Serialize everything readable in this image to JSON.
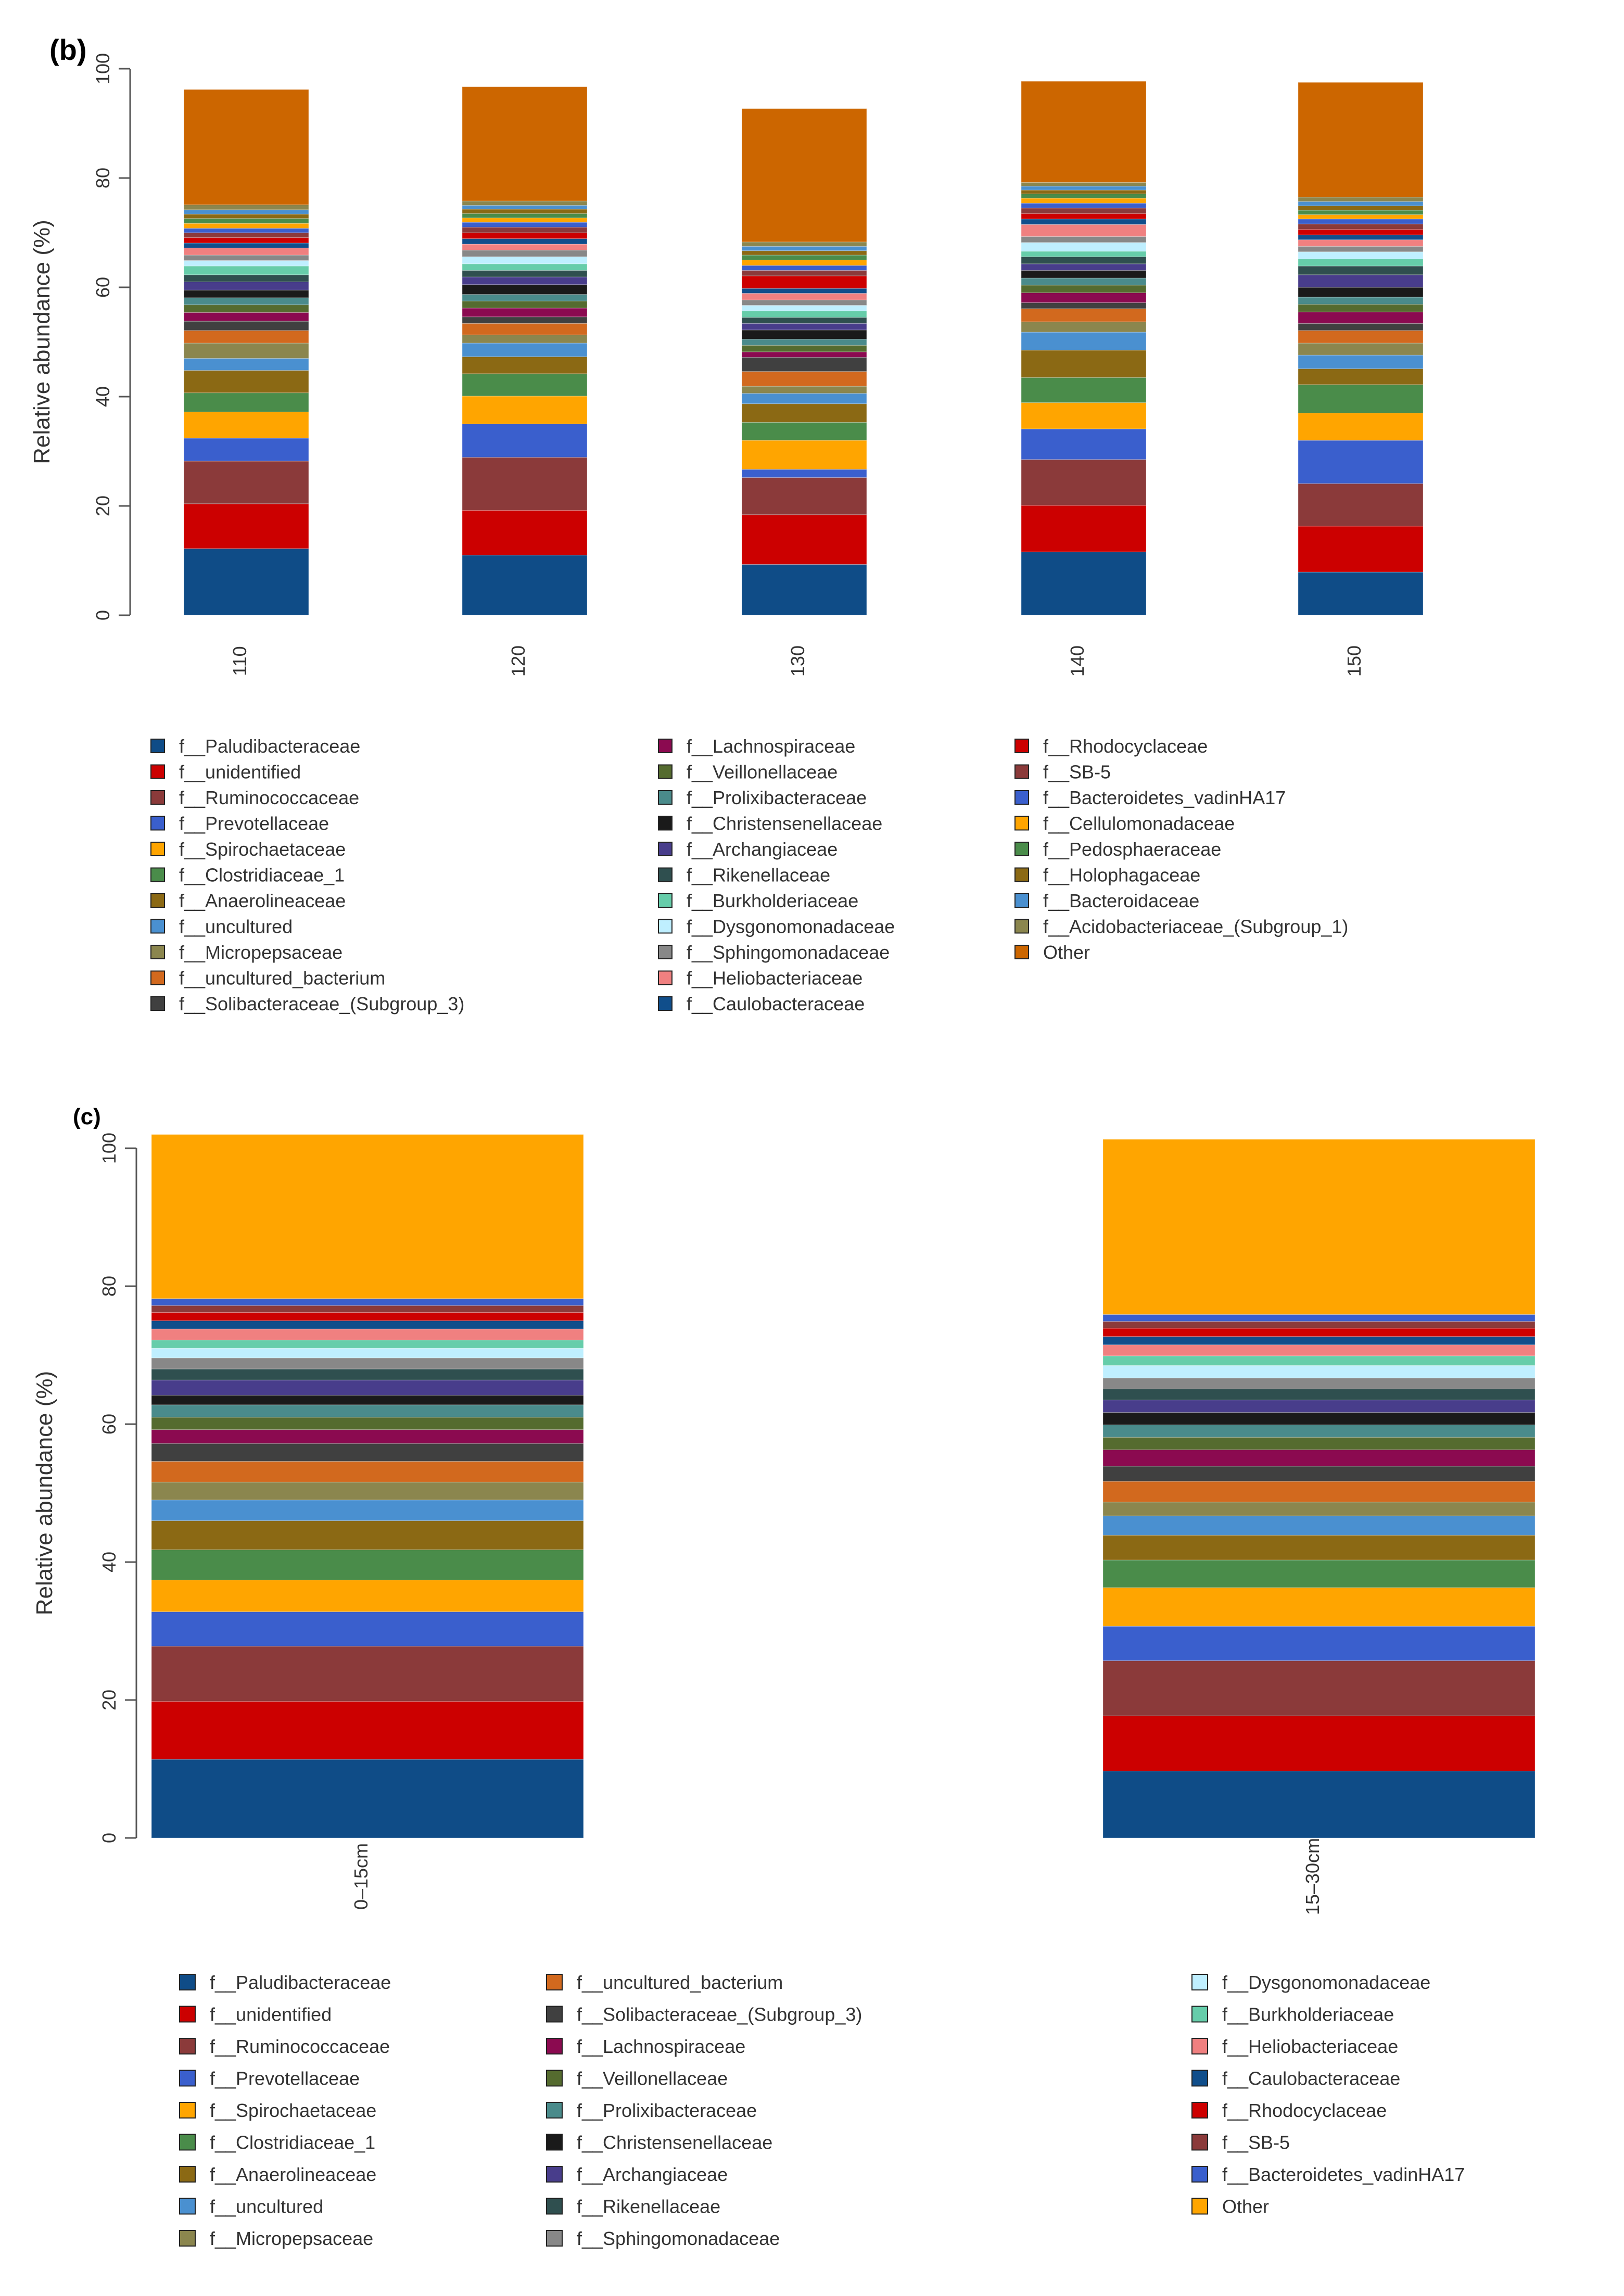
{
  "palette": {
    "Paludibacteraceae": "#0f4c87",
    "unidentified": "#cc0000",
    "Ruminococcaceae": "#8b3a3a",
    "Prevotellaceae": "#3a5fcd",
    "Spirochaetaceae": "#ffa500",
    "Clostridiaceae_1": "#4a8c4a",
    "Anaerolineaceae": "#8b6914",
    "uncultured": "#4a90d0",
    "Micropepsaceae": "#8b864e",
    "uncultured_bacterium": "#d2691e",
    "Solibacteraceae_(Subgroup_3)": "#404040",
    "Lachnospiraceae": "#8b0a50",
    "Veillonellaceae": "#556b2f",
    "Prolixibacteraceae": "#4a8b8b",
    "Christensenellaceae": "#1a1a1a",
    "Archangiaceae": "#483d8b",
    "Rikenellaceae": "#2f4f4f",
    "Burkholderiaceae": "#66cdaa",
    "Dysgonomonadaceae": "#bfefff",
    "Sphingomonadaceae": "#888888",
    "Heliobacteriaceae": "#f08080",
    "Caulobacteraceae": "#104e8b",
    "Rhodocyclaceae": "#cd0000",
    "SB-5": "#8b3a3a",
    "Bacteroidetes_vadinHA17": "#3a5fcd",
    "Cellulomonadaceae": "#ffa500",
    "Pedosphaeraceae": "#4a8c4a",
    "Holophagaceae": "#8b6914",
    "Bacteroidaceae": "#4a90d0",
    "Acidobacteriaceae_(Subgroup_1)": "#8b864e",
    "Other": "#cc6600",
    "Other_c": "#ffa500"
  },
  "chart_data": [
    {
      "panel": "(b)",
      "type": "stacked-bar",
      "ylabel": "Relative abundance (%)",
      "ylim": [
        0,
        100
      ],
      "yticks": [
        "0",
        "20",
        "40",
        "60",
        "80",
        "100"
      ],
      "categories": [
        "110",
        "120",
        "130",
        "140",
        "150"
      ],
      "series": [
        {
          "name": "Paludibacteraceae",
          "values": [
            12.2,
            11.0,
            9.3,
            11.6,
            7.9
          ]
        },
        {
          "name": "unidentified",
          "values": [
            8.2,
            8.2,
            9.1,
            8.5,
            8.4
          ]
        },
        {
          "name": "Ruminococcaceae",
          "values": [
            7.8,
            9.7,
            6.8,
            8.4,
            7.8
          ]
        },
        {
          "name": "Prevotellaceae",
          "values": [
            4.2,
            6.1,
            1.5,
            5.6,
            7.9
          ]
        },
        {
          "name": "Spirochaetaceae",
          "values": [
            4.8,
            5.1,
            5.3,
            4.8,
            5.0
          ]
        },
        {
          "name": "Clostridiaceae_1",
          "values": [
            3.5,
            4.1,
            3.3,
            4.6,
            5.2
          ]
        },
        {
          "name": "Anaerolineaceae",
          "values": [
            4.1,
            3.1,
            3.4,
            5.0,
            2.9
          ]
        },
        {
          "name": "uncultured",
          "values": [
            2.2,
            2.5,
            1.9,
            3.3,
            2.5
          ]
        },
        {
          "name": "Micropepsaceae",
          "values": [
            2.8,
            1.5,
            1.3,
            1.9,
            2.2
          ]
        },
        {
          "name": "uncultured_bacterium",
          "values": [
            2.3,
            2.1,
            2.7,
            2.4,
            2.3
          ]
        },
        {
          "name": "Solibacteraceae_(Subgroup_3)",
          "values": [
            1.7,
            1.2,
            2.6,
            1.1,
            1.3
          ]
        },
        {
          "name": "Lachnospiraceae",
          "values": [
            1.6,
            1.6,
            1.0,
            1.8,
            2.1
          ]
        },
        {
          "name": "Veillonellaceae",
          "values": [
            1.4,
            1.3,
            1.2,
            1.4,
            1.4
          ]
        },
        {
          "name": "Prolixibacteraceae",
          "values": [
            1.3,
            1.2,
            1.1,
            1.3,
            1.3
          ]
        },
        {
          "name": "Christensenellaceae",
          "values": [
            1.4,
            1.8,
            1.7,
            1.4,
            1.8
          ]
        },
        {
          "name": "Archangiaceae",
          "values": [
            1.5,
            1.4,
            1.2,
            1.2,
            2.3
          ]
        },
        {
          "name": "Rikenellaceae",
          "values": [
            1.3,
            1.2,
            1.1,
            1.3,
            1.6
          ]
        },
        {
          "name": "Burkholderiaceae",
          "values": [
            1.6,
            1.2,
            1.2,
            1.0,
            1.3
          ]
        },
        {
          "name": "Dysgonomonadaceae",
          "values": [
            1.0,
            1.3,
            1.0,
            1.6,
            1.3
          ]
        },
        {
          "name": "Sphingomonadaceae",
          "values": [
            1.0,
            1.2,
            1.0,
            1.1,
            1.0
          ]
        },
        {
          "name": "Heliobacteriaceae",
          "values": [
            1.3,
            1.1,
            1.2,
            2.2,
            1.2
          ]
        },
        {
          "name": "Caulobacteraceae",
          "values": [
            0.9,
            1.0,
            0.9,
            1.0,
            0.9
          ]
        },
        {
          "name": "Rhodocyclaceae",
          "values": [
            1.0,
            1.1,
            2.3,
            1.0,
            1.0
          ]
        },
        {
          "name": "SB-5",
          "values": [
            0.9,
            1.0,
            1.0,
            1.0,
            1.0
          ]
        },
        {
          "name": "Bacteroidetes_vadinHA17",
          "values": [
            0.8,
            0.9,
            0.9,
            0.9,
            0.9
          ]
        },
        {
          "name": "Cellulomonadaceae",
          "values": [
            0.9,
            0.8,
            1.0,
            0.9,
            0.8
          ]
        },
        {
          "name": "Pedosphaeraceae",
          "values": [
            0.9,
            0.8,
            0.9,
            0.8,
            0.8
          ]
        },
        {
          "name": "Holophagaceae",
          "values": [
            0.8,
            0.8,
            0.8,
            0.7,
            0.8
          ]
        },
        {
          "name": "Bacteroidaceae",
          "values": [
            0.8,
            0.7,
            0.8,
            0.7,
            0.8
          ]
        },
        {
          "name": "Acidobacteriaceae_(Subgroup_1)",
          "values": [
            0.9,
            0.8,
            0.8,
            0.7,
            0.8
          ]
        },
        {
          "name": "Other",
          "values": [
            21.1,
            20.9,
            24.4,
            18.5,
            21.0
          ]
        }
      ],
      "legend": [
        "f__Paludibacteraceae",
        "f__unidentified",
        "f__Ruminococcaceae",
        "f__Prevotellaceae",
        "f__Spirochaetaceae",
        "f__Clostridiaceae_1",
        "f__Anaerolineaceae",
        "f__uncultured",
        "f__Micropepsaceae",
        "f__uncultured_bacterium",
        "f__Solibacteraceae_(Subgroup_3)",
        "f__Lachnospiraceae",
        "f__Veillonellaceae",
        "f__Prolixibacteraceae",
        "f__Christensenellaceae",
        "f__Archangiaceae",
        "f__Rikenellaceae",
        "f__Burkholderiaceae",
        "f__Dysgonomonadaceae",
        "f__Sphingomonadaceae",
        "f__Heliobacteriaceae",
        "f__Caulobacteraceae",
        "f__Rhodocyclaceae",
        "f__SB-5",
        "f__Bacteroidetes_vadinHA17",
        "f__Cellulomonadaceae",
        "f__Pedosphaeraceae",
        "f__Holophagaceae",
        "f__Bacteroidaceae",
        "f__Acidobacteriaceae_(Subgroup_1)",
        "Other"
      ]
    },
    {
      "panel": "(c)",
      "type": "stacked-bar",
      "ylabel": "Relative abundance (%)",
      "ylim": [
        0,
        100
      ],
      "yticks": [
        "0",
        "20",
        "40",
        "60",
        "80",
        "100"
      ],
      "categories": [
        "0–15cm",
        "15–30cm"
      ],
      "series": [
        {
          "name": "Paludibacteraceae",
          "values": [
            11.4,
            9.7
          ]
        },
        {
          "name": "unidentified",
          "values": [
            8.4,
            8.0
          ]
        },
        {
          "name": "Ruminococcaceae",
          "values": [
            8.0,
            8.0
          ]
        },
        {
          "name": "Prevotellaceae",
          "values": [
            5.0,
            5.0
          ]
        },
        {
          "name": "Spirochaetaceae",
          "values": [
            4.6,
            5.6
          ]
        },
        {
          "name": "Clostridiaceae_1",
          "values": [
            4.4,
            4.0
          ]
        },
        {
          "name": "Anaerolineaceae",
          "values": [
            4.2,
            3.6
          ]
        },
        {
          "name": "uncultured",
          "values": [
            3.0,
            2.8
          ]
        },
        {
          "name": "Micropepsaceae",
          "values": [
            2.6,
            2.0
          ]
        },
        {
          "name": "uncultured_bacterium",
          "values": [
            3.0,
            3.0
          ]
        },
        {
          "name": "Solibacteraceae_(Subgroup_3)",
          "values": [
            2.6,
            2.2
          ]
        },
        {
          "name": "Lachnospiraceae",
          "values": [
            2.0,
            2.4
          ]
        },
        {
          "name": "Veillonellaceae",
          "values": [
            1.8,
            1.8
          ]
        },
        {
          "name": "Prolixibacteraceae",
          "values": [
            1.8,
            1.8
          ]
        },
        {
          "name": "Christensenellaceae",
          "values": [
            1.4,
            1.8
          ]
        },
        {
          "name": "Archangiaceae",
          "values": [
            2.2,
            1.8
          ]
        },
        {
          "name": "Rikenellaceae",
          "values": [
            1.6,
            1.6
          ]
        },
        {
          "name": "Sphingomonadaceae",
          "values": [
            1.6,
            1.6
          ]
        },
        {
          "name": "Dysgonomonadaceae",
          "values": [
            1.4,
            1.8
          ]
        },
        {
          "name": "Burkholderiaceae",
          "values": [
            1.2,
            1.4
          ]
        },
        {
          "name": "Heliobacteriaceae",
          "values": [
            1.6,
            1.6
          ]
        },
        {
          "name": "Caulobacteraceae",
          "values": [
            1.2,
            1.2
          ]
        },
        {
          "name": "Rhodocyclaceae",
          "values": [
            1.2,
            1.2
          ]
        },
        {
          "name": "SB-5",
          "values": [
            1.0,
            1.0
          ]
        },
        {
          "name": "Bacteroidetes_vadinHA17",
          "values": [
            1.0,
            1.0
          ]
        },
        {
          "name": "Other",
          "values": [
            23.8,
            25.4
          ]
        }
      ],
      "legend": [
        "f__Paludibacteraceae",
        "f__unidentified",
        "f__Ruminococcaceae",
        "f__Prevotellaceae",
        "f__Spirochaetaceae",
        "f__Clostridiaceae_1",
        "f__Anaerolineaceae",
        "f__uncultured",
        "f__Micropepsaceae",
        "f__uncultured_bacterium",
        "f__Solibacteraceae_(Subgroup_3)",
        "f__Lachnospiraceae",
        "f__Veillonellaceae",
        "f__Prolixibacteraceae",
        "f__Christensenellaceae",
        "f__Archangiaceae",
        "f__Rikenellaceae",
        "f__Sphingomonadaceae",
        "f__Dysgonomonadaceae",
        "f__Burkholderiaceae",
        "f__Heliobacteriaceae",
        "f__Caulobacteraceae",
        "f__Rhodocyclaceae",
        "f__SB-5",
        "f__Bacteroidetes_vadinHA17",
        "Other"
      ]
    }
  ]
}
